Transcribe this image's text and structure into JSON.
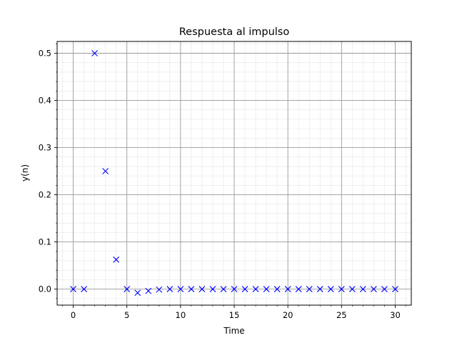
{
  "chart_data": {
    "type": "scatter",
    "title": "Respuesta al impulso",
    "xlabel": "Time",
    "ylabel": "y(n)",
    "marker": "x",
    "color": "#0000ff",
    "xlim": [
      -1.5,
      31.5
    ],
    "ylim": [
      -0.034,
      0.525
    ],
    "xticks": [
      0,
      5,
      10,
      15,
      20,
      25,
      30
    ],
    "yticks": [
      0.0,
      0.1,
      0.2,
      0.3,
      0.4,
      0.5
    ],
    "xtick_labels": [
      "0",
      "5",
      "10",
      "15",
      "20",
      "25",
      "30"
    ],
    "ytick_labels": [
      "0.0",
      "0.1",
      "0.2",
      "0.3",
      "0.4",
      "0.5"
    ],
    "grid": true,
    "minor_grid": true,
    "x": [
      0,
      1,
      2,
      3,
      4,
      5,
      6,
      7,
      8,
      9,
      10,
      11,
      12,
      13,
      14,
      15,
      16,
      17,
      18,
      19,
      20,
      21,
      22,
      23,
      24,
      25,
      26,
      27,
      28,
      29,
      30
    ],
    "y": [
      0,
      0,
      0.5,
      0.25,
      0.0625,
      0,
      -0.0078,
      -0.0039,
      -0.001,
      0,
      0,
      0,
      0,
      0,
      0,
      0,
      0,
      0,
      0,
      0,
      0,
      0,
      0,
      0,
      0,
      0,
      0,
      0,
      0,
      0,
      0
    ]
  }
}
